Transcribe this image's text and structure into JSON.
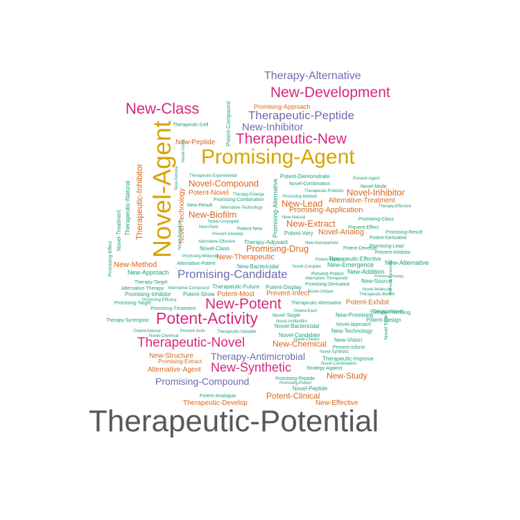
{
  "palette": {
    "magenta": "#d6287a",
    "purple": "#6e6ab0",
    "gold": "#d8a400",
    "orange": "#d9651a",
    "teal": "#1b9e77",
    "gray": "#595959"
  },
  "words": [
    {
      "text": "Therapeutic-Potential",
      "color": "gray"
    },
    {
      "text": "Novel-Agent",
      "color": "gold"
    },
    {
      "text": "Promising-Agent",
      "color": "gold"
    },
    {
      "text": "New-Development",
      "color": "magenta"
    },
    {
      "text": "Therapeutic-New",
      "color": "magenta"
    },
    {
      "text": "Potent-Activity",
      "color": "magenta"
    },
    {
      "text": "New-Class",
      "color": "magenta"
    },
    {
      "text": "New-Potent",
      "color": "magenta"
    },
    {
      "text": "Therapeutic-Novel",
      "color": "magenta"
    },
    {
      "text": "Therapy-Alternative",
      "color": "purple"
    },
    {
      "text": "Therapeutic-Peptide",
      "color": "purple"
    },
    {
      "text": "New-Inhibitor",
      "color": "purple"
    },
    {
      "text": "Promising-Candidate",
      "color": "purple"
    },
    {
      "text": "New-Synthetic",
      "color": "magenta"
    },
    {
      "text": "Promising-Compound",
      "color": "purple"
    },
    {
      "text": "Therapy-Antimicrobial",
      "color": "purple"
    },
    {
      "text": "Novel-Compound",
      "color": "orange"
    },
    {
      "text": "Novel-Inhibitor",
      "color": "orange"
    },
    {
      "text": "New-Extract",
      "color": "orange"
    },
    {
      "text": "Promising-Drug",
      "color": "orange"
    },
    {
      "text": "New-Lead",
      "color": "orange"
    },
    {
      "text": "New-Biofilm",
      "color": "orange"
    },
    {
      "text": "New-Chemical",
      "color": "orange"
    },
    {
      "text": "New-Study",
      "color": "orange"
    },
    {
      "text": "Potent-Clinical",
      "color": "orange"
    },
    {
      "text": "Promising-Application",
      "color": "orange"
    },
    {
      "text": "Alternative-Treatment",
      "color": "orange"
    },
    {
      "text": "New-Therapeutic",
      "color": "orange"
    },
    {
      "text": "Novel-Analog",
      "color": "orange"
    },
    {
      "text": "Therapeutic-Inhibitor",
      "color": "orange"
    },
    {
      "text": "New-Method",
      "color": "orange"
    },
    {
      "text": "Potent-Novel",
      "color": "orange"
    },
    {
      "text": "New-Peptide",
      "color": "orange"
    },
    {
      "text": "Potent-Most",
      "color": "orange"
    },
    {
      "text": "Prevent-Infect",
      "color": "orange"
    },
    {
      "text": "Potent-Exhibit",
      "color": "orange"
    },
    {
      "text": "New-Structure",
      "color": "orange"
    },
    {
      "text": "Alternative-Agent",
      "color": "orange"
    },
    {
      "text": "Therapeutic-Develop",
      "color": "orange"
    },
    {
      "text": "New-Effective",
      "color": "orange"
    },
    {
      "text": "Promising-Approach",
      "color": "orange"
    },
    {
      "text": "Novel-Technology",
      "color": "orange"
    },
    {
      "text": "Promising-Extract",
      "color": "orange"
    },
    {
      "text": "Potent-Compound",
      "color": "teal"
    },
    {
      "text": "Therapeutic-Natural",
      "color": "teal"
    },
    {
      "text": "Novel-Treatment",
      "color": "teal"
    },
    {
      "text": "Promising-Effect",
      "color": "teal"
    },
    {
      "text": "Promising-Alternative",
      "color": "teal"
    },
    {
      "text": "Therapeutic-Cell",
      "color": "teal"
    },
    {
      "text": "Therapeutic-Experimental",
      "color": "teal"
    },
    {
      "text": "Potent-Demonstrate",
      "color": "teal"
    },
    {
      "text": "Prevent-Agent",
      "color": "teal"
    },
    {
      "text": "Novel-Combination",
      "color": "teal"
    },
    {
      "text": "Novel-Mode",
      "color": "teal"
    },
    {
      "text": "Therapeutic-Probiotic",
      "color": "teal"
    },
    {
      "text": "Therapy-Emerge",
      "color": "teal"
    },
    {
      "text": "Promising-Combination",
      "color": "teal"
    },
    {
      "text": "Promising-Method",
      "color": "teal"
    },
    {
      "text": "New-Result",
      "color": "teal"
    },
    {
      "text": "Alternative-Technology",
      "color": "teal"
    },
    {
      "text": "Therapy-Effective",
      "color": "teal"
    },
    {
      "text": "New-Natural",
      "color": "teal"
    },
    {
      "text": "Promising-Class",
      "color": "teal"
    },
    {
      "text": "Novel-Conjugate",
      "color": "teal"
    },
    {
      "text": "Prevent-Effect",
      "color": "teal"
    },
    {
      "text": "Potent-New",
      "color": "teal"
    },
    {
      "text": "New-Plant",
      "color": "teal"
    },
    {
      "text": "Promising-Result",
      "color": "teal"
    },
    {
      "text": "Prevent-Develop",
      "color": "teal"
    },
    {
      "text": "Potent-Very",
      "color": "teal"
    },
    {
      "text": "Potent-Derivative",
      "color": "teal"
    },
    {
      "text": "Novel-Potential",
      "color": "teal"
    },
    {
      "text": "Alternative-Effective",
      "color": "teal"
    },
    {
      "text": "Therapy-Adjuvant",
      "color": "teal"
    },
    {
      "text": "New-Nanoparticle",
      "color": "teal"
    },
    {
      "text": "Promising-Lead",
      "color": "teal"
    },
    {
      "text": "Novel-Class",
      "color": "teal"
    },
    {
      "text": "Potent-Develop",
      "color": "teal"
    },
    {
      "text": "Prevent-Inhibitor",
      "color": "teal"
    },
    {
      "text": "Promising-Molecule",
      "color": "teal"
    },
    {
      "text": "Potent-Highly",
      "color": "teal"
    },
    {
      "text": "Therapeutic-Effective",
      "color": "teal"
    },
    {
      "text": "New-Alternative",
      "color": "teal"
    },
    {
      "text": "Alternative-Potent",
      "color": "teal"
    },
    {
      "text": "New-Bactericidal",
      "color": "teal"
    },
    {
      "text": "Novel-Complex",
      "color": "teal"
    },
    {
      "text": "New-Emergence",
      "color": "teal"
    },
    {
      "text": "New-Approach",
      "color": "teal"
    },
    {
      "text": "Prevent-Potent",
      "color": "teal"
    },
    {
      "text": "New-Addition",
      "color": "teal"
    },
    {
      "text": "Alternative-Therapeutic",
      "color": "teal"
    },
    {
      "text": "Promising-Therapy",
      "color": "teal"
    },
    {
      "text": "Therapy-Target",
      "color": "teal"
    },
    {
      "text": "Promising-Derivative",
      "color": "teal"
    },
    {
      "text": "Alternative-Therapy",
      "color": "teal"
    },
    {
      "text": "Alternative-Compound",
      "color": "teal"
    },
    {
      "text": "Therapeutic-Future",
      "color": "teal"
    },
    {
      "text": "Potent-Display",
      "color": "teal"
    },
    {
      "text": "Promising-Inhibitor",
      "color": "teal"
    },
    {
      "text": "Potent-Show",
      "color": "teal"
    },
    {
      "text": "Novel-Molecule",
      "color": "teal"
    },
    {
      "text": "Therapeutic-Biofilm",
      "color": "teal"
    },
    {
      "text": "Promising-Efficacy",
      "color": "teal"
    },
    {
      "text": "Promising-Target",
      "color": "teal"
    },
    {
      "text": "Promising-Treatment",
      "color": "teal"
    },
    {
      "text": "Therapeutic-Alternative",
      "color": "teal"
    },
    {
      "text": "Therapy-Novel",
      "color": "teal"
    },
    {
      "text": "Potent-Exert",
      "color": "teal"
    },
    {
      "text": "Novel-Target",
      "color": "teal"
    },
    {
      "text": "New-Promising",
      "color": "teal"
    },
    {
      "text": "Therapy-Promising",
      "color": "teal"
    },
    {
      "text": "Potent-Design",
      "color": "teal"
    },
    {
      "text": "Therapy-Synergistic",
      "color": "teal"
    },
    {
      "text": "Novel-Antibiofilm",
      "color": "teal"
    },
    {
      "text": "Novel-Approach",
      "color": "teal"
    },
    {
      "text": "Novel-Bactericidal",
      "color": "teal"
    },
    {
      "text": "New-Technology",
      "color": "teal"
    },
    {
      "text": "Potent-Natural",
      "color": "teal"
    },
    {
      "text": "Prevent-Activ",
      "color": "teal"
    },
    {
      "text": "Therapeutic-Valuable",
      "color": "teal"
    },
    {
      "text": "Novel-Candidate",
      "color": "teal"
    },
    {
      "text": "Novel-Chemical",
      "color": "teal"
    },
    {
      "text": "Novel-Chemo",
      "color": "teal"
    },
    {
      "text": "New-Vision",
      "color": "teal"
    },
    {
      "text": "Prevent-Inform",
      "color": "teal"
    },
    {
      "text": "Novel-Synthetic",
      "color": "teal"
    },
    {
      "text": "Therapeutic-Improve",
      "color": "teal"
    },
    {
      "text": "Novel-Combination",
      "color": "teal"
    },
    {
      "text": "Strategy-Against",
      "color": "teal"
    },
    {
      "text": "Promising-Peptide",
      "color": "teal"
    },
    {
      "text": "Promising-Potent",
      "color": "teal"
    },
    {
      "text": "Potent-Analogue",
      "color": "teal"
    },
    {
      "text": "Novel-Peptide",
      "color": "teal"
    },
    {
      "text": "Novel-Vision",
      "color": "teal"
    },
    {
      "text": "New-Genera",
      "color": "teal"
    },
    {
      "text": "Novel-Type",
      "color": "teal"
    },
    {
      "text": "Promising-Bactericidal",
      "color": "teal"
    },
    {
      "text": "Novel-Unique",
      "color": "teal"
    },
    {
      "text": "New-Source",
      "color": "teal"
    }
  ]
}
